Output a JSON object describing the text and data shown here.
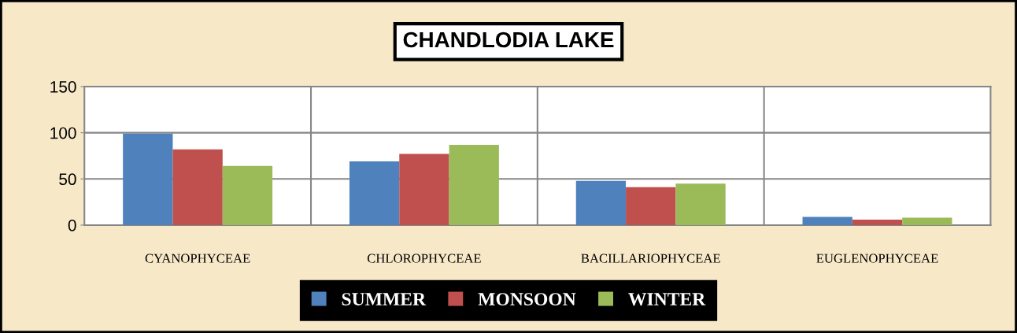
{
  "chart_data": {
    "type": "bar",
    "title": "CHANDLODIA LAKE",
    "categories": [
      "CYANOPHYCEAE",
      "CHLOROPHYCEAE",
      "BACILLARIOPHYCEAE",
      "EUGLENOPHYCEAE"
    ],
    "series": [
      {
        "name": "SUMMER",
        "color": "#4f81bd",
        "values": [
          99,
          69,
          48,
          9
        ]
      },
      {
        "name": "MONSOON",
        "color": "#c0504d",
        "values": [
          82,
          77,
          41,
          6
        ]
      },
      {
        "name": "WINTER",
        "color": "#9bbb59",
        "values": [
          64,
          87,
          45,
          8
        ]
      }
    ],
    "ylim": [
      0,
      150
    ],
    "yticks": [
      0,
      50,
      100,
      150
    ],
    "grid": true,
    "legend": "bottom"
  }
}
